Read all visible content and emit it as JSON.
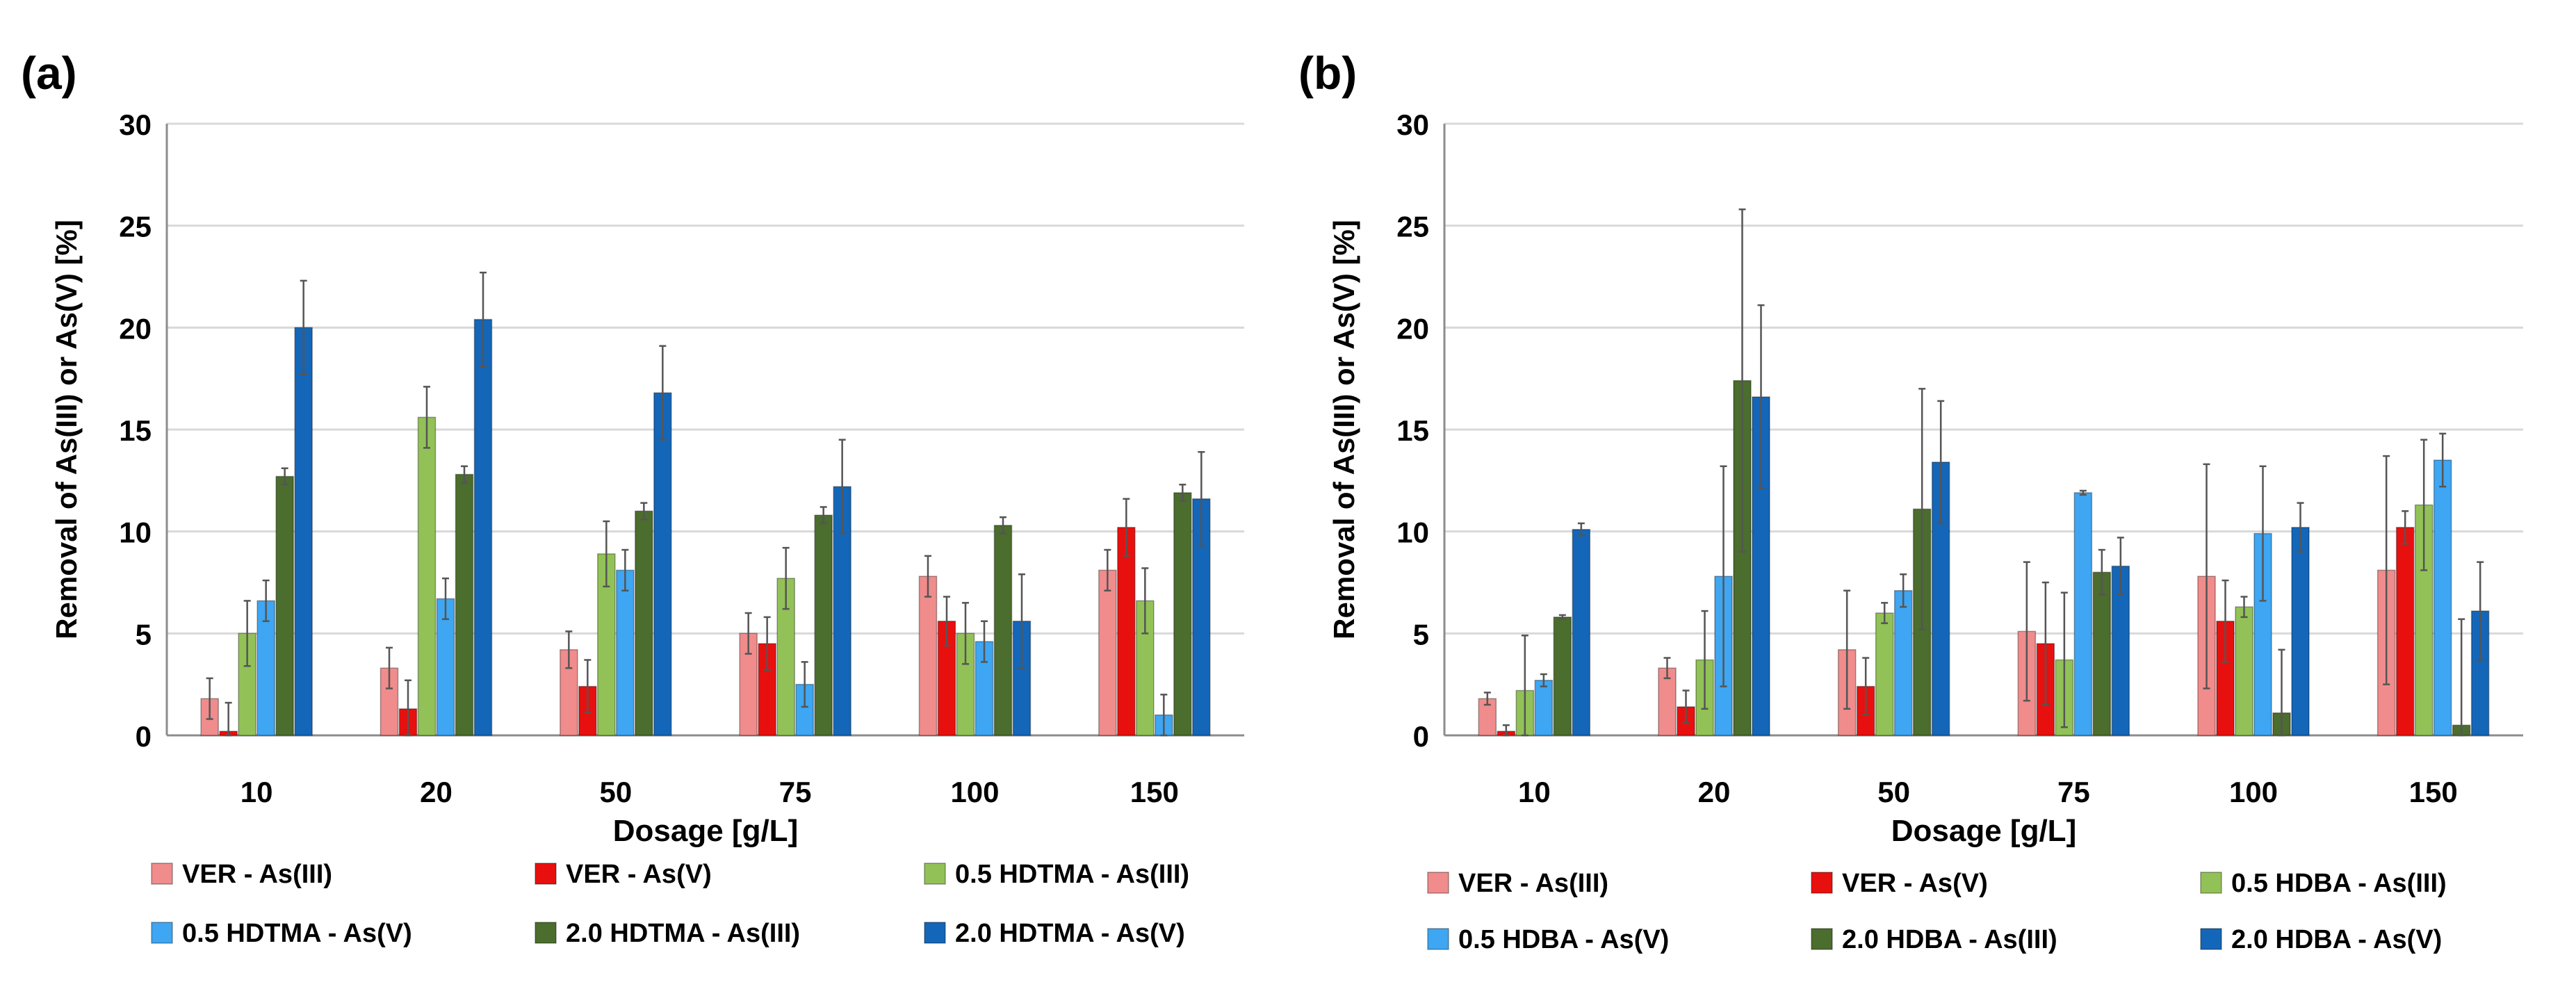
{
  "colors": {
    "s1": "#f08c8c",
    "s2": "#e8100e",
    "s3": "#92c257",
    "s4": "#3ea6f2",
    "s5": "#4b6d2d",
    "s6": "#1466b8",
    "grid": "#d9d9d9",
    "axis": "#8c8c8c"
  },
  "chart_data": [
    {
      "panel_label": "(a)",
      "type": "bar",
      "xlabel": "Dosage [g/L]",
      "ylabel": "Removal of As(III) or As(V) [%]",
      "ylim": [
        0,
        30
      ],
      "yticks": [
        "0",
        "5",
        "10",
        "15",
        "20",
        "25",
        "30"
      ],
      "categories": [
        "10",
        "20",
        "50",
        "75",
        "100",
        "150"
      ],
      "grid": true,
      "legend_position": "bottom",
      "series": [
        {
          "name": "VER - As(III)",
          "color_key": "s1",
          "values": [
            1.8,
            3.3,
            4.2,
            5.0,
            7.8,
            8.1
          ],
          "errors": [
            1.0,
            1.0,
            0.9,
            1.0,
            1.0,
            1.0
          ]
        },
        {
          "name": "VER - As(V)",
          "color_key": "s2",
          "values": [
            0.2,
            1.3,
            2.4,
            4.5,
            5.6,
            10.2
          ],
          "errors": [
            1.4,
            1.4,
            1.3,
            1.3,
            1.2,
            1.4
          ]
        },
        {
          "name": "0.5 HDTMA - As(III)",
          "color_key": "s3",
          "values": [
            5.0,
            15.6,
            8.9,
            7.7,
            5.0,
            6.6
          ],
          "errors": [
            1.6,
            1.5,
            1.6,
            1.5,
            1.5,
            1.6
          ]
        },
        {
          "name": "0.5 HDTMA - As(V)",
          "color_key": "s4",
          "values": [
            6.6,
            6.7,
            8.1,
            2.5,
            4.6,
            1.0
          ],
          "errors": [
            1.0,
            1.0,
            1.0,
            1.1,
            1.0,
            1.0
          ]
        },
        {
          "name": "2.0 HDTMA - As(III)",
          "color_key": "s5",
          "values": [
            12.7,
            12.8,
            11.0,
            10.8,
            10.3,
            11.9
          ],
          "errors": [
            0.4,
            0.4,
            0.4,
            0.4,
            0.4,
            0.4
          ]
        },
        {
          "name": "2.0 HDTMA - As(V)",
          "color_key": "s6",
          "values": [
            20.0,
            20.4,
            16.8,
            12.2,
            5.6,
            11.6
          ],
          "errors": [
            2.3,
            2.3,
            2.3,
            2.3,
            2.3,
            2.3
          ]
        }
      ]
    },
    {
      "panel_label": "(b)",
      "type": "bar",
      "xlabel": "Dosage [g/L]",
      "ylabel": "Removal of As(III) or As(V) [%]",
      "ylim": [
        0,
        30
      ],
      "yticks": [
        "0",
        "5",
        "10",
        "15",
        "20",
        "25",
        "30"
      ],
      "categories": [
        "10",
        "20",
        "50",
        "75",
        "100",
        "150"
      ],
      "grid": true,
      "legend_position": "bottom",
      "series": [
        {
          "name": "VER - As(III)",
          "color_key": "s1",
          "values": [
            1.8,
            3.3,
            4.2,
            5.1,
            7.8,
            8.1
          ],
          "errors": [
            0.3,
            0.5,
            2.9,
            3.4,
            5.5,
            5.6
          ]
        },
        {
          "name": "VER - As(V)",
          "color_key": "s2",
          "values": [
            0.2,
            1.4,
            2.4,
            4.5,
            5.6,
            10.2
          ],
          "errors": [
            0.3,
            0.8,
            1.4,
            3.0,
            2.0,
            0.8
          ]
        },
        {
          "name": "0.5 HDBA  - As(III)",
          "color_key": "s3",
          "values": [
            2.2,
            3.7,
            6.0,
            3.7,
            6.3,
            11.3
          ],
          "errors": [
            2.7,
            2.4,
            0.5,
            3.3,
            0.5,
            3.2
          ]
        },
        {
          "name": "0.5 HDBA  - As(V)",
          "color_key": "s4",
          "values": [
            2.7,
            7.8,
            7.1,
            11.9,
            9.9,
            13.5
          ],
          "errors": [
            0.3,
            5.4,
            0.8,
            0.1,
            3.3,
            1.3
          ]
        },
        {
          "name": "2.0 HDBA  - As(III)",
          "color_key": "s5",
          "values": [
            5.8,
            17.4,
            11.1,
            8.0,
            1.1,
            0.5
          ],
          "errors": [
            0.1,
            8.4,
            5.9,
            1.1,
            3.1,
            5.2
          ]
        },
        {
          "name": "2.0 HDBA  - As(V)",
          "color_key": "s6",
          "values": [
            10.1,
            16.6,
            13.4,
            8.3,
            10.2,
            6.1
          ],
          "errors": [
            0.3,
            4.5,
            3.0,
            1.4,
            1.2,
            2.4
          ]
        }
      ]
    }
  ]
}
